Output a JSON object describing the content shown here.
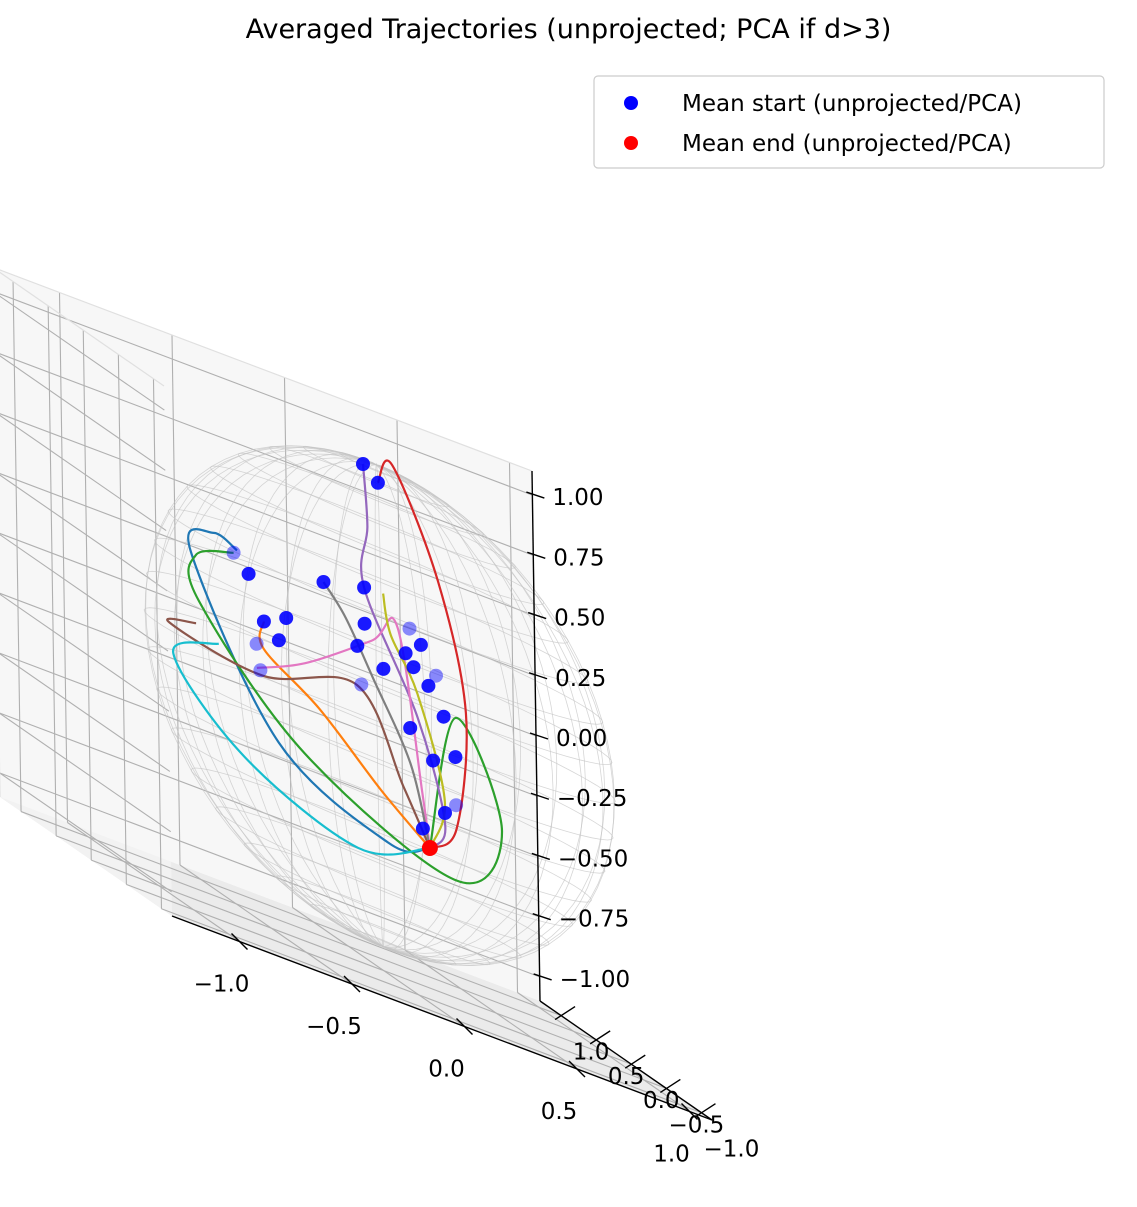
{
  "chart_data": {
    "type": "line",
    "title": "Averaged Trajectories (unprojected; PCA if d>3)",
    "xlabel": "",
    "ylabel": "",
    "zlabel": "",
    "xlim": [
      -1.3,
      1.1
    ],
    "ylim": [
      -1.15,
      1.3
    ],
    "zlim": [
      -1.1,
      1.1
    ],
    "x_ticks": [
      "−1.0",
      "−0.5",
      "0.0",
      "0.5",
      "1.0"
    ],
    "y_ticks": [
      "−1.0",
      "−0.5",
      "0.0",
      "0.5",
      "1.0"
    ],
    "z_ticks": [
      "−1.00",
      "−0.75",
      "−0.50",
      "−0.25",
      "0.00",
      "0.25",
      "0.50",
      "0.75",
      "1.00"
    ],
    "x_tick_values": [
      -1.0,
      -0.5,
      0.0,
      0.5,
      1.0
    ],
    "y_tick_values": [
      -1.0,
      -0.5,
      0.0,
      0.5,
      1.0
    ],
    "z_tick_values": [
      -1.0,
      -0.75,
      -0.5,
      -0.25,
      0.0,
      0.25,
      0.5,
      0.75,
      1.0
    ],
    "grid": true,
    "unit_sphere_wireframe": true,
    "legend_position": "top-right",
    "legend": [
      {
        "label": "Mean start (unprojected/PCA)",
        "color": "#0000ff"
      },
      {
        "label": "Mean end (unprojected/PCA)",
        "color": "#ff0000"
      }
    ],
    "mean_end": [
      0.23,
      0.05,
      -0.52
    ],
    "series": [
      {
        "color": "#1f77b4",
        "points": [
          [
            -0.55,
            0.25,
            0.4
          ],
          [
            -0.7,
            0.1,
            0.45
          ],
          [
            -0.85,
            -0.05,
            0.35
          ],
          [
            -0.5,
            -0.15,
            -0.3
          ],
          [
            0.0,
            -0.1,
            -0.55
          ],
          [
            0.23,
            0.05,
            -0.52
          ]
        ]
      },
      {
        "color": "#ff7f0e",
        "points": [
          [
            -0.45,
            0.2,
            0.15
          ],
          [
            -0.5,
            0.05,
            0.05
          ],
          [
            -0.3,
            -0.1,
            -0.1
          ],
          [
            0.0,
            0.0,
            -0.35
          ],
          [
            0.23,
            0.05,
            -0.52
          ]
        ]
      },
      {
        "color": "#2ca02c",
        "points": [
          [
            -0.55,
            0.3,
            0.38
          ],
          [
            -0.75,
            0.2,
            0.32
          ],
          [
            -0.8,
            0.0,
            0.15
          ],
          [
            -0.4,
            -0.2,
            -0.3
          ],
          [
            0.3,
            -0.1,
            -0.6
          ],
          [
            0.6,
            0.2,
            -0.35
          ],
          [
            0.4,
            0.2,
            0.05
          ],
          [
            0.23,
            0.05,
            -0.52
          ]
        ]
      },
      {
        "color": "#d62728",
        "points": [
          [
            0.1,
            0.3,
            0.9
          ],
          [
            0.15,
            0.25,
            1.0
          ],
          [
            0.3,
            0.1,
            0.6
          ],
          [
            0.4,
            0.05,
            0.1
          ],
          [
            0.35,
            0.05,
            -0.4
          ],
          [
            0.23,
            0.05,
            -0.52
          ]
        ]
      },
      {
        "color": "#9467bd",
        "points": [
          [
            0.05,
            0.35,
            0.95
          ],
          [
            0.05,
            0.3,
            0.7
          ],
          [
            0.0,
            0.2,
            0.45
          ],
          [
            0.2,
            0.1,
            0.0
          ],
          [
            0.3,
            0.05,
            -0.4
          ],
          [
            0.23,
            0.05,
            -0.52
          ]
        ]
      },
      {
        "color": "#8c564b",
        "points": [
          [
            -0.8,
            0.05,
            0.05
          ],
          [
            -0.95,
            -0.05,
            0.02
          ],
          [
            -0.55,
            -0.1,
            -0.05
          ],
          [
            -0.1,
            0.0,
            0.05
          ],
          [
            0.1,
            0.0,
            -0.3
          ],
          [
            0.23,
            0.05,
            -0.52
          ]
        ]
      },
      {
        "color": "#e377c2",
        "points": [
          [
            -0.5,
            0.15,
            -0.05
          ],
          [
            -0.3,
            0.1,
            0.05
          ],
          [
            0.0,
            0.1,
            0.25
          ],
          [
            0.1,
            0.05,
            0.35
          ],
          [
            0.2,
            0.05,
            -0.3
          ],
          [
            0.23,
            0.05,
            -0.52
          ]
        ]
      },
      {
        "color": "#7f7f7f",
        "points": [
          [
            -0.15,
            0.3,
            0.4
          ],
          [
            -0.1,
            0.15,
            0.3
          ],
          [
            0.0,
            0.1,
            0.1
          ],
          [
            0.15,
            0.05,
            -0.2
          ],
          [
            0.23,
            0.05,
            -0.52
          ]
        ]
      },
      {
        "color": "#bcbd22",
        "points": [
          [
            0.1,
            0.25,
            0.45
          ],
          [
            0.1,
            0.15,
            0.3
          ],
          [
            0.2,
            0.1,
            0.1
          ],
          [
            0.3,
            0.05,
            -0.3
          ],
          [
            0.23,
            0.05,
            -0.52
          ]
        ]
      },
      {
        "color": "#17becf",
        "points": [
          [
            -0.7,
            0.05,
            0.0
          ],
          [
            -0.95,
            -0.1,
            -0.1
          ],
          [
            -0.7,
            -0.3,
            -0.4
          ],
          [
            -0.2,
            -0.3,
            -0.6
          ],
          [
            0.23,
            0.05,
            -0.52
          ]
        ]
      }
    ],
    "start_points": [
      [
        0.1,
        0.3,
        0.9
      ],
      [
        0.05,
        0.35,
        0.95
      ],
      [
        0.0,
        0.2,
        0.45
      ],
      [
        -0.55,
        0.3,
        0.38
      ],
      [
        -0.5,
        0.25,
        0.32
      ],
      [
        -0.15,
        0.3,
        0.4
      ],
      [
        0.0,
        0.2,
        0.3
      ],
      [
        0.2,
        0.2,
        0.35
      ],
      [
        0.25,
        0.2,
        0.3
      ],
      [
        -0.45,
        0.2,
        0.15
      ],
      [
        -0.35,
        0.2,
        0.2
      ],
      [
        -0.5,
        0.15,
        0.05
      ],
      [
        -0.4,
        0.15,
        0.1
      ],
      [
        -0.05,
        0.15,
        0.2
      ],
      [
        0.05,
        0.1,
        0.15
      ],
      [
        -0.05,
        0.1,
        0.05
      ],
      [
        0.15,
        0.1,
        0.25
      ],
      [
        0.25,
        0.1,
        0.15
      ],
      [
        0.3,
        0.05,
        0.05
      ],
      [
        -0.5,
        0.1,
        -0.05
      ],
      [
        0.15,
        0.05,
        -0.05
      ],
      [
        0.25,
        0.05,
        -0.15
      ],
      [
        0.35,
        0.05,
        -0.1
      ],
      [
        0.35,
        0.05,
        -0.3
      ],
      [
        0.3,
        0.05,
        -0.35
      ],
      [
        0.2,
        0.05,
        -0.45
      ],
      [
        0.2,
        0.15,
        0.2
      ],
      [
        0.3,
        0.15,
        0.2
      ]
    ]
  }
}
